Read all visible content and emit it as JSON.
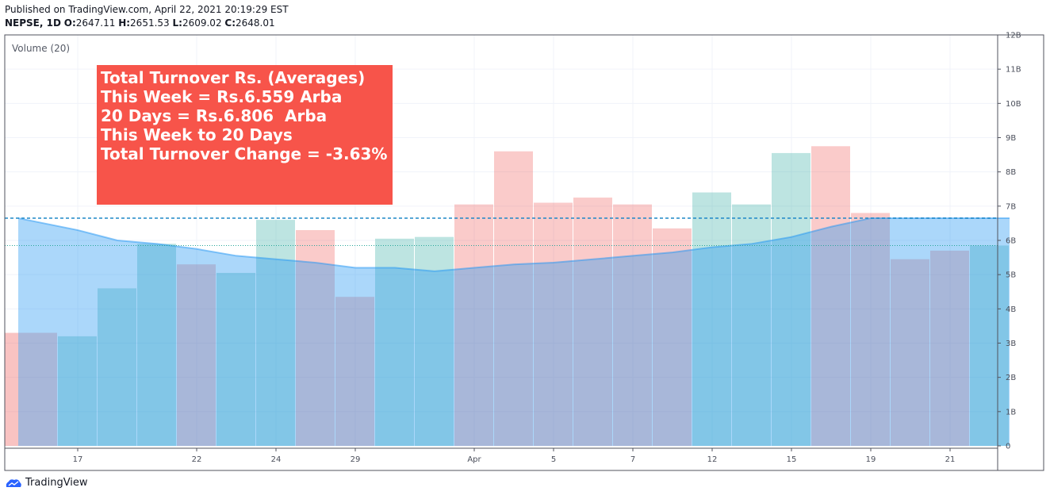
{
  "header": {
    "published": "Published on TradingView.com, April 22, 2021 20:19:29 EST",
    "symbol": "NEPSE, 1D",
    "o_label": "O:",
    "o_value": "2647.11",
    "h_label": "H:",
    "h_value": "2651.53",
    "l_label": "L:",
    "l_value": "2609.02",
    "c_label": "C:",
    "c_value": "2648.01"
  },
  "indicator_label": "Volume (20)",
  "annotation": {
    "line1": "Total Turnover Rs. (Averages)",
    "line2": "",
    "line3": "This Week = Rs.6.559 Arba",
    "line4": "20 Days = Rs.6.806  Arba",
    "line5": "",
    "line6": "This Week to 20 Days",
    "line7": "Total Turnover Change = -3.63%"
  },
  "brand": "TradingView",
  "colors": {
    "up": "#26a69a",
    "down": "#ef5350",
    "ma_fill": "#2196f3",
    "dashed_line": "#1e88c7",
    "dotted_line": "#26a69a",
    "annotation_bg": "#f7544a"
  },
  "chart_data": {
    "type": "bar",
    "series": [
      {
        "name": "Volume",
        "x": [
          "Mar 16",
          "Mar 17",
          "Mar 18",
          "Mar 19",
          "Mar 22",
          "Mar 23",
          "Mar 24",
          "Mar 25",
          "Mar 29",
          "Mar 30",
          "Mar 31",
          "Apr 1",
          "Apr 2",
          "Apr 5",
          "Apr 6",
          "Apr 7",
          "Apr 8",
          "Apr 12",
          "Apr 13",
          "Apr 15",
          "Apr 16",
          "Apr 19",
          "Apr 20",
          "Apr 21",
          "Apr 22"
        ],
        "values": [
          3.3,
          3.2,
          4.6,
          5.9,
          5.3,
          5.05,
          6.6,
          6.3,
          4.35,
          6.05,
          6.1,
          7.05,
          8.6,
          7.1,
          7.25,
          7.05,
          6.35,
          7.4,
          7.05,
          8.55,
          8.75,
          6.8,
          5.45,
          5.7,
          5.85
        ],
        "direction": [
          "down",
          "up",
          "up",
          "up",
          "down",
          "up",
          "up",
          "down",
          "down",
          "up",
          "up",
          "down",
          "down",
          "down",
          "down",
          "down",
          "down",
          "up",
          "up",
          "up",
          "down",
          "down",
          "down",
          "down",
          "up"
        ]
      },
      {
        "name": "",
        "type": "area",
        "values": [
          6.65,
          6.3,
          6.0,
          5.9,
          5.75,
          5.55,
          5.45,
          5.35,
          5.2,
          5.2,
          5.1,
          5.2,
          5.3,
          5.35,
          5.45,
          5.55,
          5.65,
          5.8,
          5.9,
          6.1,
          6.4,
          6.65,
          6.65,
          6.65,
          6.65
        ]
      }
    ],
    "hlines": [
      6.65,
      5.85
    ],
    "y_ticks": [
      "0",
      "1B",
      "2B",
      "3B",
      "4B",
      "5B",
      "6B",
      "7B",
      "8B",
      "9B",
      "10B",
      "11B",
      "12B"
    ],
    "x_ticks": [
      "17",
      "22",
      "24",
      "29",
      "Apr",
      "5",
      "7",
      "12",
      "15",
      "19",
      "21"
    ],
    "ylim": [
      0,
      12
    ],
    "grid": true,
    "title": "",
    "xlabel": "",
    "ylabel": ""
  }
}
